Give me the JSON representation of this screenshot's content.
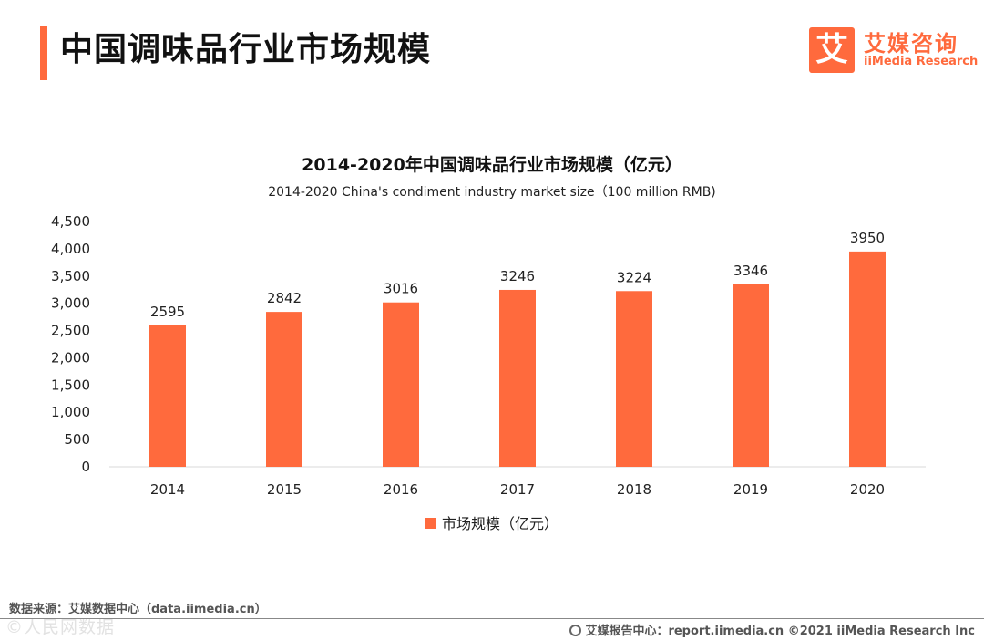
{
  "header": {
    "title": "中国调味品行业市场规模"
  },
  "logo": {
    "mark": "艾",
    "name_cn": "艾媒咨询",
    "name_en": "iiMedia Research"
  },
  "colors": {
    "accent": "#ff6a3d",
    "bar": "#ff6a3d",
    "axis": "#d9d9d9"
  },
  "chart_data": {
    "type": "bar",
    "title": "2014-2020年中国调味品行业市场规模（亿元）",
    "subtitle": "2014-2020 China's condiment industry market size（100 million RMB)",
    "categories": [
      "2014",
      "2015",
      "2016",
      "2017",
      "2018",
      "2019",
      "2020"
    ],
    "series": [
      {
        "name": "市场规模（亿元）",
        "values": [
          2595,
          2842,
          3016,
          3246,
          3224,
          3346,
          3950
        ]
      }
    ],
    "data_labels": [
      "2595",
      "2842",
      "3016",
      "3246",
      "3224",
      "3346",
      "3950"
    ],
    "ylim": [
      0,
      4500
    ],
    "yticks": [
      0,
      500,
      1000,
      1500,
      2000,
      2500,
      3000,
      3500,
      4000,
      4500
    ],
    "ytick_labels": [
      "0",
      "500",
      "1,000",
      "1,500",
      "2,000",
      "2,500",
      "3,000",
      "3,500",
      "4,000",
      "4,500"
    ],
    "grid": false,
    "legend": "bottom"
  },
  "footer": {
    "source": "数据来源：艾媒数据中心（data.iimedia.cn）",
    "report": "艾媒报告中心：report.iimedia.cn ©2021 iiMedia Research Inc",
    "watermark": "©人民网数据"
  }
}
